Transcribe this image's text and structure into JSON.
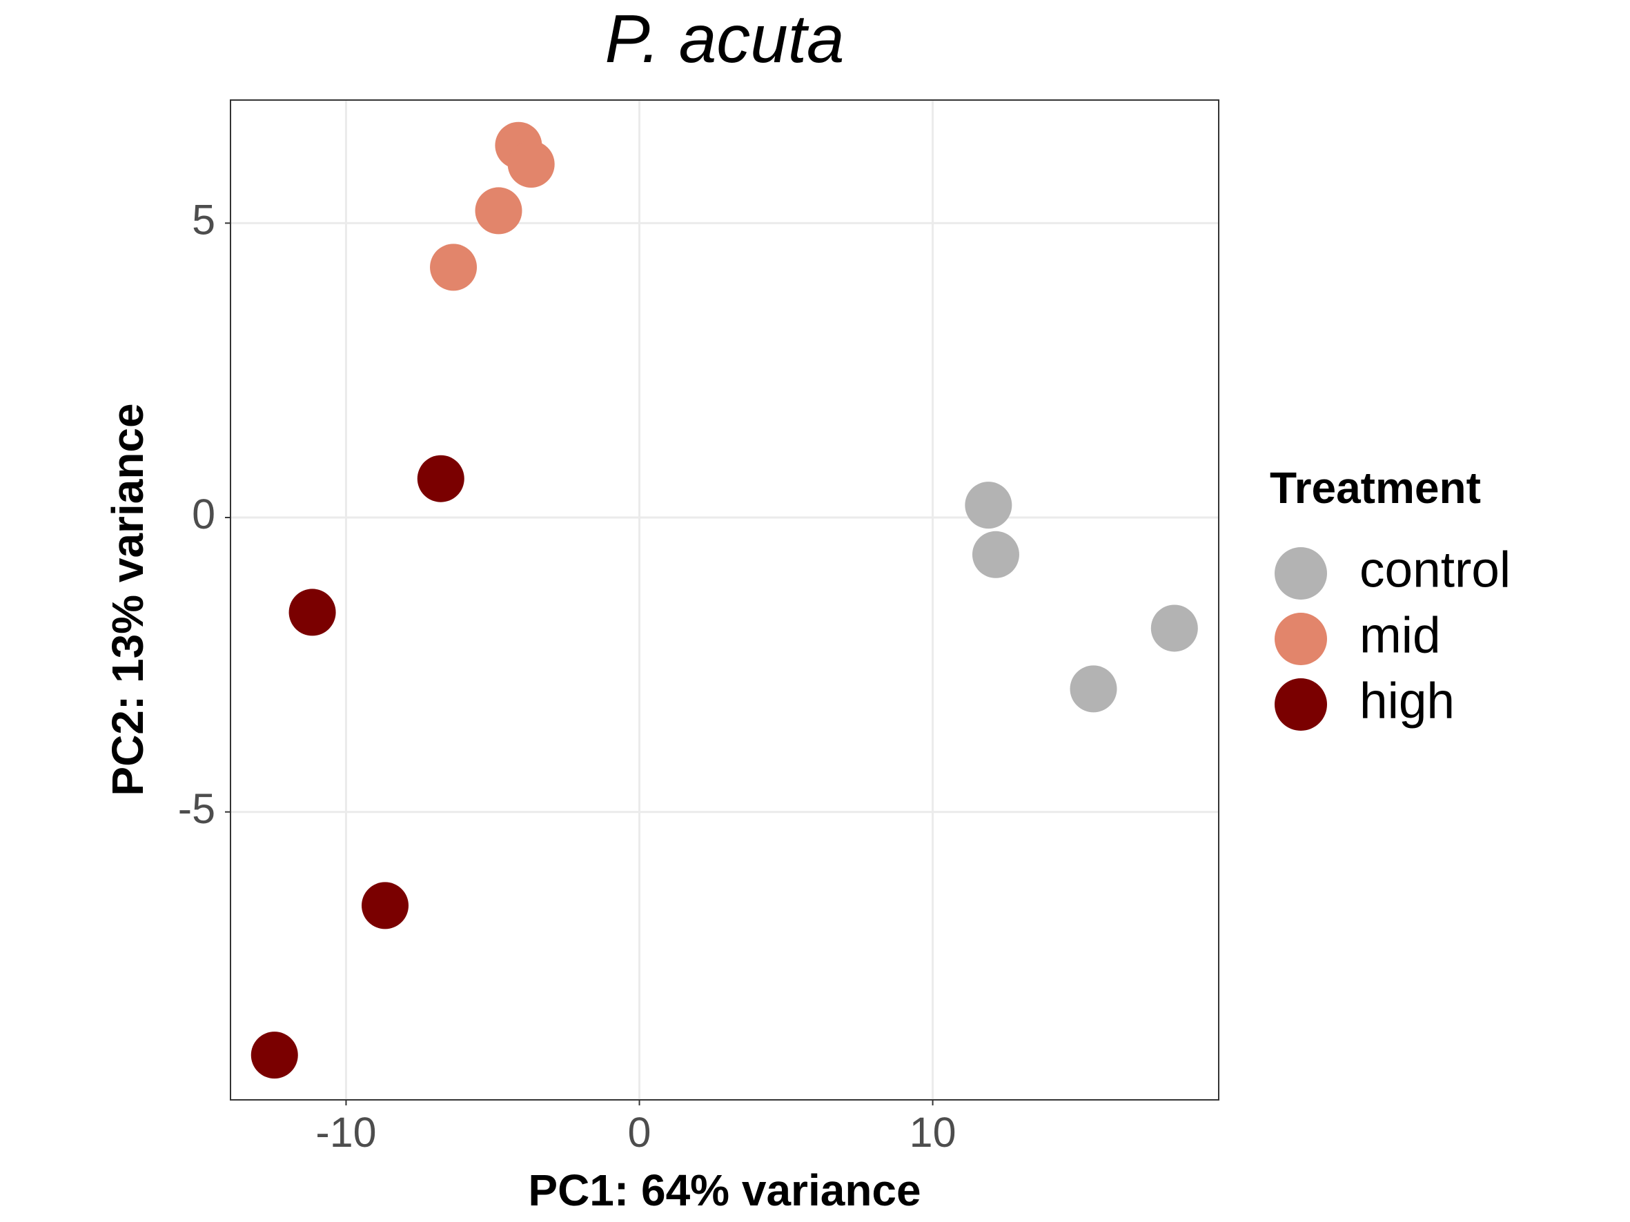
{
  "chart_data": {
    "type": "scatter",
    "title": "P. acuta",
    "x_label": "PC1: 64% variance",
    "y_label": "PC2: 13% variance",
    "legend_title": "Treatment",
    "legend": "right",
    "grid": true,
    "xlim": [
      -13.94,
      19.75
    ],
    "ylim": [
      -9.89,
      7.09
    ],
    "xticks": [
      -10,
      0,
      10
    ],
    "yticks": [
      -5,
      0,
      5
    ],
    "series": [
      {
        "name": "control",
        "color": "#b3b3b3",
        "x": [
          11.9,
          12.15,
          18.24,
          15.48
        ],
        "values": [
          0.21,
          -0.63,
          -1.88,
          -2.91
        ]
      },
      {
        "name": "mid",
        "color": "#e2856b",
        "x": [
          -4.12,
          -3.69,
          -4.8,
          -6.34
        ],
        "values": [
          6.32,
          6.0,
          5.21,
          4.25
        ]
      },
      {
        "name": "high",
        "color": "#7a0000",
        "x": [
          -6.77,
          -11.15,
          -8.67,
          -12.44
        ],
        "values": [
          0.66,
          -1.61,
          -6.59,
          -9.13
        ]
      }
    ]
  }
}
